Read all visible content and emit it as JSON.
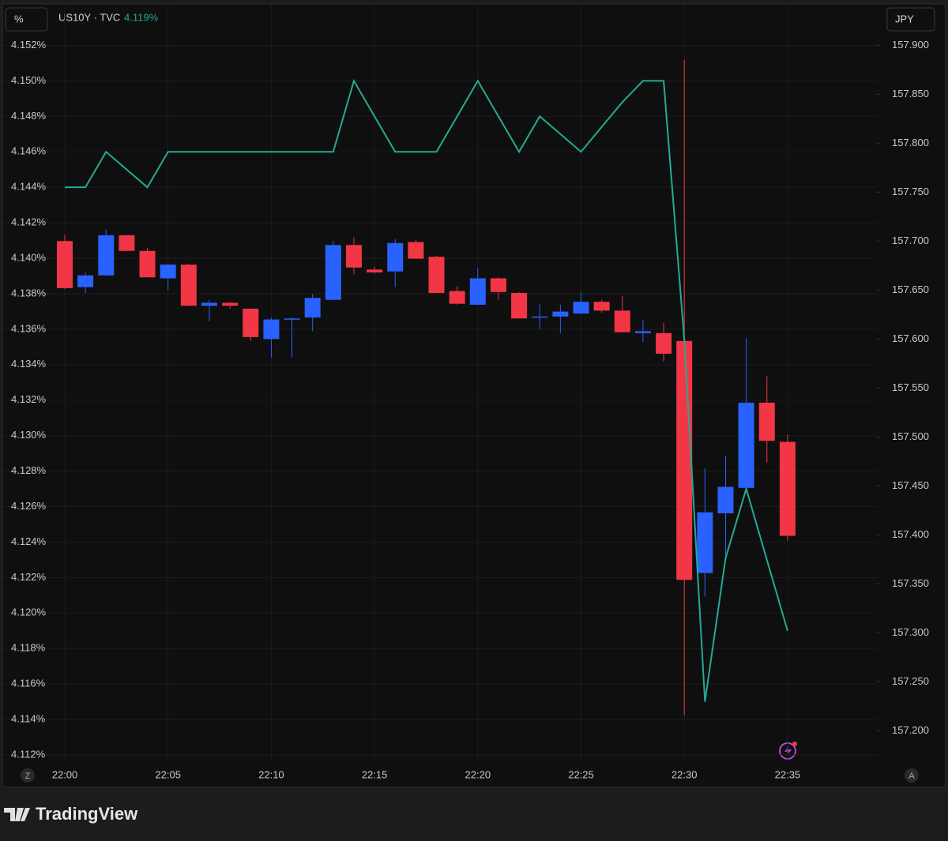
{
  "chart_data": {
    "type": "candlestick",
    "left_unit": "%",
    "right_unit": "JPY",
    "legend_value": "4.119%",
    "brand": "TradingView",
    "left_button": "Z",
    "right_button": "A",
    "categories": [
      "22:00",
      null,
      null,
      null,
      null,
      "22:05",
      null,
      null,
      null,
      null,
      "22:10",
      null,
      null,
      null,
      null,
      "22:15",
      null,
      null,
      null,
      null,
      "22:20",
      null,
      null,
      null,
      null,
      "22:25",
      null,
      null,
      null,
      null,
      "22:30",
      null,
      null,
      null,
      null,
      "22:35"
    ],
    "ylim": [
      4.1116,
      4.153
    ],
    "yticks": [
      {
        "value": 4.112,
        "label": "4.112%"
      },
      {
        "value": 4.114,
        "label": "4.114%"
      },
      {
        "value": 4.116,
        "label": "4.116%"
      },
      {
        "value": 4.118,
        "label": "4.118%"
      },
      {
        "value": 4.12,
        "label": "4.120%"
      },
      {
        "value": 4.122,
        "label": "4.122%"
      },
      {
        "value": 4.124,
        "label": "4.124%"
      },
      {
        "value": 4.126,
        "label": "4.126%"
      },
      {
        "value": 4.128,
        "label": "4.128%"
      },
      {
        "value": 4.13,
        "label": "4.130%"
      },
      {
        "value": 4.132,
        "label": "4.132%"
      },
      {
        "value": 4.134,
        "label": "4.134%"
      },
      {
        "value": 4.136,
        "label": "4.136%"
      },
      {
        "value": 4.138,
        "label": "4.138%"
      },
      {
        "value": 4.14,
        "label": "4.140%"
      },
      {
        "value": 4.142,
        "label": "4.142%"
      },
      {
        "value": 4.144,
        "label": "4.144%"
      },
      {
        "value": 4.146,
        "label": "4.146%"
      },
      {
        "value": 4.148,
        "label": "4.148%"
      },
      {
        "value": 4.15,
        "label": "4.150%"
      },
      {
        "value": 4.152,
        "label": "4.152%"
      }
    ],
    "y2lim": [
      157.168,
      157.918
    ],
    "y2ticks": [
      {
        "value": 157.2,
        "label": "157.200"
      },
      {
        "value": 157.25,
        "label": "157.250"
      },
      {
        "value": 157.3,
        "label": "157.300"
      },
      {
        "value": 157.35,
        "label": "157.350"
      },
      {
        "value": 157.4,
        "label": "157.400"
      },
      {
        "value": 157.45,
        "label": "157.450"
      },
      {
        "value": 157.5,
        "label": "157.500"
      },
      {
        "value": 157.55,
        "label": "157.550"
      },
      {
        "value": 157.6,
        "label": "157.600"
      },
      {
        "value": 157.65,
        "label": "157.650"
      },
      {
        "value": 157.7,
        "label": "157.700"
      },
      {
        "value": 157.75,
        "label": "157.750"
      },
      {
        "value": 157.8,
        "label": "157.800"
      },
      {
        "value": 157.85,
        "label": "157.850"
      },
      {
        "value": 157.9,
        "label": "157.900"
      }
    ],
    "grid": true,
    "candles": {
      "axis": "y2",
      "up_color": "#2962ff",
      "down_color": "#f23645",
      "open": [
        157.7,
        157.653,
        157.665,
        157.706,
        157.69,
        157.662,
        157.676,
        157.634,
        157.637,
        157.631,
        157.6,
        157.62,
        157.622,
        157.64,
        157.696,
        157.671,
        157.669,
        157.699,
        157.684,
        157.649,
        157.635,
        157.662,
        157.647,
        157.622,
        157.623,
        157.626,
        157.638,
        157.629,
        157.606,
        157.606,
        157.598,
        157.361,
        157.422,
        157.448,
        157.535,
        157.495
      ],
      "high": [
        157.706,
        157.668,
        157.712,
        157.706,
        157.693,
        157.677,
        157.677,
        157.64,
        157.638,
        157.631,
        157.622,
        157.622,
        157.646,
        157.7,
        157.704,
        157.674,
        157.702,
        157.701,
        157.685,
        157.654,
        157.673,
        157.663,
        157.648,
        157.636,
        157.635,
        157.648,
        157.64,
        157.644,
        157.619,
        157.617,
        157.885,
        157.468,
        157.481,
        157.601,
        157.562,
        157.502
      ],
      "low": [
        157.651,
        157.647,
        157.665,
        157.69,
        157.663,
        157.65,
        157.634,
        157.618,
        157.631,
        157.598,
        157.581,
        157.581,
        157.608,
        157.64,
        157.666,
        157.667,
        157.653,
        157.682,
        157.647,
        157.635,
        157.635,
        157.64,
        157.621,
        157.61,
        157.606,
        157.626,
        157.627,
        157.607,
        157.597,
        157.577,
        157.216,
        157.337,
        157.379,
        157.448,
        157.474,
        157.394
      ],
      "close": [
        157.652,
        157.665,
        157.706,
        157.69,
        157.663,
        157.676,
        157.634,
        157.637,
        157.634,
        157.602,
        157.62,
        157.621,
        157.642,
        157.696,
        157.673,
        157.668,
        157.698,
        157.682,
        157.647,
        157.636,
        157.662,
        157.648,
        157.621,
        157.623,
        157.628,
        157.638,
        157.629,
        157.607,
        157.608,
        157.585,
        157.354,
        157.423,
        157.449,
        157.535,
        157.496,
        157.399
      ]
    },
    "series": [
      {
        "name": "US10Y · TVC",
        "type": "line",
        "axis": "y",
        "color": "#22ab94",
        "values": [
          4.144,
          4.144,
          4.146,
          4.145,
          4.144,
          4.146,
          4.146,
          4.146,
          4.146,
          4.146,
          4.146,
          4.146,
          4.146,
          4.146,
          4.15,
          4.148,
          4.146,
          4.146,
          4.146,
          4.148,
          4.15,
          4.148,
          4.146,
          4.148,
          4.147,
          4.146,
          4.1474,
          4.1488,
          4.15,
          4.15,
          4.1354,
          4.115,
          4.1231,
          4.127,
          4.123,
          4.119
        ]
      }
    ]
  }
}
